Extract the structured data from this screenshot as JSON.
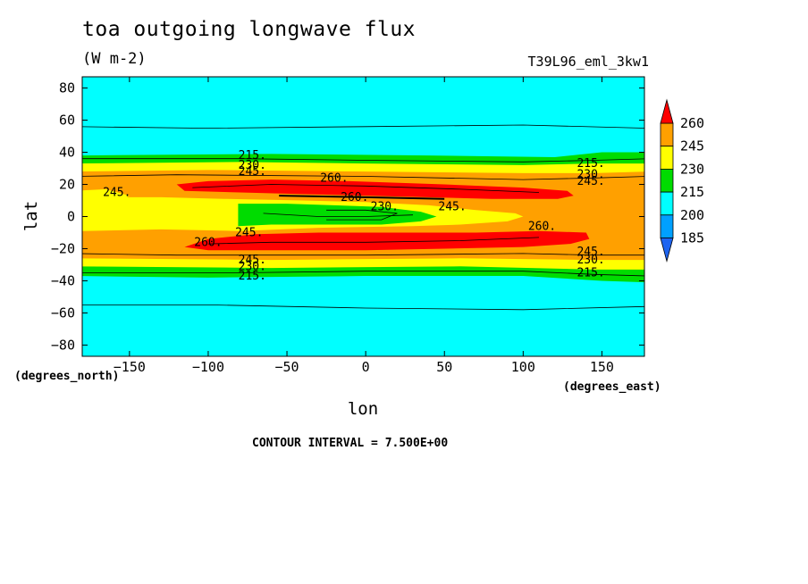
{
  "figure": {
    "title": "toa outgoing longwave flux",
    "units": "(W m-2)",
    "run_id": "T39L96_eml_3kw1",
    "xlabel": "lon",
    "ylabel": "lat",
    "x_units_label": "(degrees_east)",
    "y_units_label": "(degrees_north)",
    "footer": "CONTOUR INTERVAL = 7.500E+00"
  },
  "chart_data": {
    "type": "heatmap",
    "title": "toa outgoing longwave flux",
    "subtitle": "(W m-2)",
    "xlabel": "lon",
    "ylabel": "lat",
    "xlim": [
      -180,
      177
    ],
    "ylim": [
      -87,
      87
    ],
    "x_ticks": [
      -150,
      -100,
      -50,
      0,
      50,
      100,
      150
    ],
    "x_tick_labels": [
      "−150",
      "−100",
      "−50",
      "0",
      "50",
      "100",
      "150"
    ],
    "y_ticks": [
      80,
      60,
      40,
      20,
      0,
      -20,
      -40,
      -60,
      -80
    ],
    "y_tick_labels": [
      "80",
      "60",
      "40",
      "20",
      "0",
      "−20",
      "−40",
      "−60",
      "−80"
    ],
    "contour_interval": 7.5,
    "color_levels": [
      185,
      200,
      215,
      230,
      245,
      260
    ],
    "colorbar_labels": [
      "260",
      "245",
      "230",
      "215",
      "200",
      "185"
    ],
    "colors": {
      "below_185": "#1e64f0",
      "185_200": "#00a0ff",
      "200_215": "#00ffff",
      "215_230": "#00dc00",
      "230_245": "#ffff00",
      "245_260": "#ffa000",
      "above_260": "#ff0000"
    },
    "contour_labels": [
      {
        "text": "215.",
        "lon": -72,
        "lat": 38
      },
      {
        "text": "230.",
        "lon": -72,
        "lat": 32
      },
      {
        "text": "245.",
        "lon": -72,
        "lat": 28
      },
      {
        "text": "260.",
        "lon": -20,
        "lat": 24
      },
      {
        "text": "245.",
        "lon": -158,
        "lat": 15
      },
      {
        "text": "260.",
        "lon": -7,
        "lat": 12
      },
      {
        "text": "230.",
        "lon": 12,
        "lat": 6
      },
      {
        "text": "245.",
        "lon": 55,
        "lat": 6
      },
      {
        "text": "260.",
        "lon": 112,
        "lat": -6
      },
      {
        "text": "245.",
        "lon": -74,
        "lat": -10
      },
      {
        "text": "260.",
        "lon": -100,
        "lat": -16
      },
      {
        "text": "215.",
        "lon": 143,
        "lat": 33
      },
      {
        "text": "230.",
        "lon": 143,
        "lat": 26
      },
      {
        "text": "245.",
        "lon": 143,
        "lat": 22
      },
      {
        "text": "245.",
        "lon": -72,
        "lat": -27
      },
      {
        "text": "230.",
        "lon": -72,
        "lat": -31
      },
      {
        "text": "215.",
        "lon": -72,
        "lat": -37
      },
      {
        "text": "245.",
        "lon": 143,
        "lat": -22
      },
      {
        "text": "230.",
        "lon": 143,
        "lat": -27
      },
      {
        "text": "215.",
        "lon": 143,
        "lat": -35
      }
    ]
  }
}
